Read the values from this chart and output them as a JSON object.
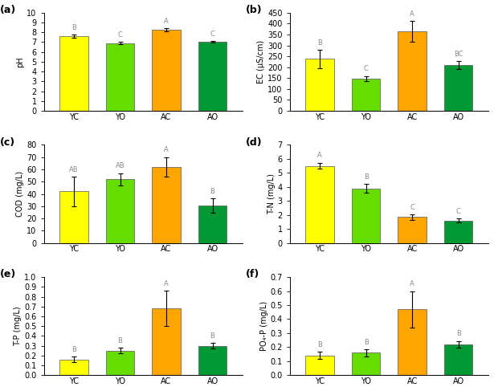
{
  "categories": [
    "YC",
    "YO",
    "AC",
    "AO"
  ],
  "colors": [
    "#FFFF00",
    "#66DD00",
    "#FFA500",
    "#009933"
  ],
  "panels": [
    {
      "label": "a",
      "ylabel": "pH",
      "ylim": [
        0,
        10
      ],
      "yticks": [
        0,
        1,
        2,
        3,
        4,
        5,
        6,
        7,
        8,
        9,
        10
      ],
      "values": [
        7.6,
        6.9,
        8.25,
        7.05
      ],
      "errors": [
        0.15,
        0.1,
        0.15,
        0.08
      ],
      "sig_labels": [
        "B",
        "C",
        "A",
        "C"
      ]
    },
    {
      "label": "b",
      "ylabel": "EC (μS/cm)",
      "ylim": [
        0,
        450
      ],
      "yticks": [
        0,
        50,
        100,
        150,
        200,
        250,
        300,
        350,
        400,
        450
      ],
      "values": [
        238,
        148,
        365,
        210
      ],
      "errors": [
        42,
        12,
        48,
        18
      ],
      "sig_labels": [
        "B",
        "C",
        "A",
        "BC"
      ]
    },
    {
      "label": "c",
      "ylabel": "COD (mg/L)",
      "ylim": [
        0,
        80
      ],
      "yticks": [
        0,
        10,
        20,
        30,
        40,
        50,
        60,
        70,
        80
      ],
      "values": [
        42,
        52,
        62,
        30.5
      ],
      "errors": [
        12,
        5,
        8,
        6
      ],
      "sig_labels": [
        "AB",
        "AB",
        "A",
        "B"
      ]
    },
    {
      "label": "d",
      "ylabel": "T-N (mg/L)",
      "ylim": [
        0,
        7
      ],
      "yticks": [
        0,
        1,
        2,
        3,
        4,
        5,
        6,
        7
      ],
      "values": [
        5.5,
        3.9,
        1.85,
        1.6
      ],
      "errors": [
        0.22,
        0.3,
        0.2,
        0.15
      ],
      "sig_labels": [
        "A",
        "B",
        "C",
        "C"
      ]
    },
    {
      "label": "e",
      "ylabel": "T-P (mg/L)",
      "ylim": [
        0,
        1.0
      ],
      "yticks": [
        0.0,
        0.1,
        0.2,
        0.3,
        0.4,
        0.5,
        0.6,
        0.7,
        0.8,
        0.9,
        1.0
      ],
      "values": [
        0.16,
        0.25,
        0.68,
        0.3
      ],
      "errors": [
        0.03,
        0.03,
        0.18,
        0.03
      ],
      "sig_labels": [
        "B",
        "B",
        "A",
        "B"
      ]
    },
    {
      "label": "f",
      "ylabel": "PO₄-P (mg/L)",
      "ylim": [
        0,
        0.7
      ],
      "yticks": [
        0.0,
        0.1,
        0.2,
        0.3,
        0.4,
        0.5,
        0.6,
        0.7
      ],
      "values": [
        0.14,
        0.16,
        0.47,
        0.22
      ],
      "errors": [
        0.025,
        0.025,
        0.13,
        0.025
      ],
      "sig_labels": [
        "B",
        "B",
        "A",
        "B"
      ]
    }
  ],
  "background_color": "#ffffff",
  "sig_label_color": "#888888"
}
